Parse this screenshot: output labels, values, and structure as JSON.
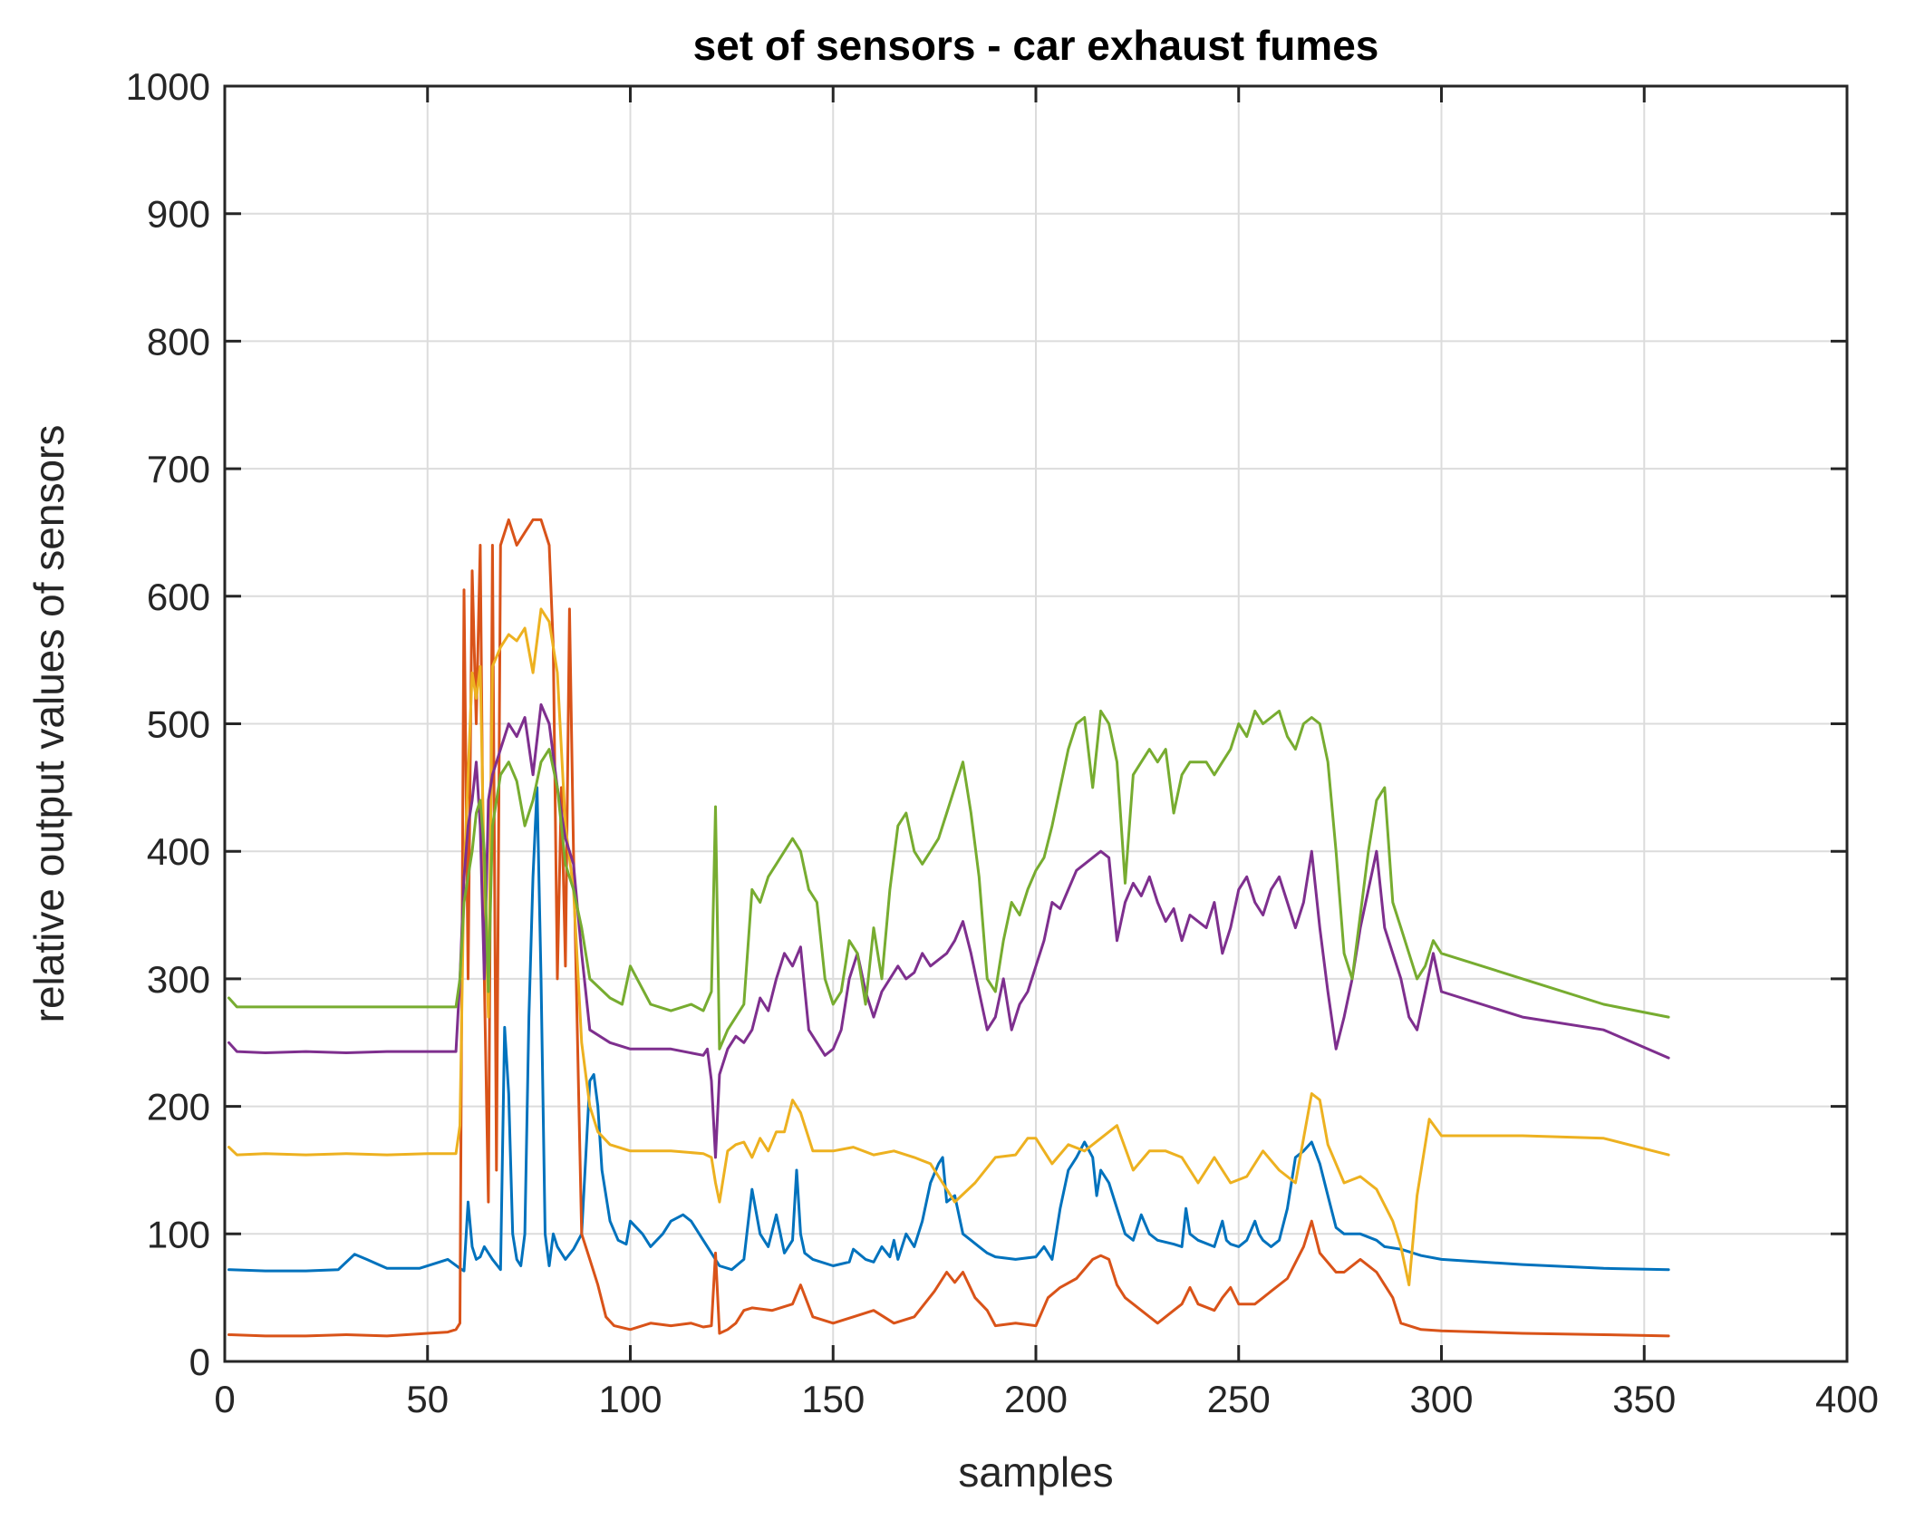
{
  "chart_data": {
    "type": "line",
    "title": "set of sensors - car exhaust fumes",
    "xlabel": "samples",
    "ylabel": "relative output values of sensors",
    "xlim": [
      0,
      400
    ],
    "ylim": [
      0,
      1000
    ],
    "xticks": [
      "0",
      "50",
      "100",
      "150",
      "200",
      "250",
      "300",
      "350",
      "400"
    ],
    "yticks": [
      "0",
      "100",
      "200",
      "300",
      "400",
      "500",
      "600",
      "700",
      "800",
      "900",
      "1000"
    ],
    "grid": true,
    "legend": "none",
    "series": [
      {
        "color": "#0072BD",
        "x": [
          1,
          10,
          20,
          28,
          32,
          35,
          40,
          48,
          52,
          55,
          58,
          59,
          60,
          61,
          62,
          63,
          64,
          66,
          68,
          69,
          70,
          71,
          72,
          73,
          74,
          75,
          76,
          77,
          78,
          79,
          80,
          81,
          82,
          84,
          86,
          88,
          90,
          91,
          92,
          93,
          95,
          97,
          99,
          100,
          103,
          105,
          108,
          110,
          113,
          115,
          118,
          120,
          122,
          125,
          128,
          130,
          132,
          134,
          136,
          137,
          138,
          140,
          141,
          142,
          143,
          145,
          150,
          154,
          155,
          158,
          160,
          162,
          164,
          165,
          166,
          168,
          170,
          172,
          174,
          176,
          177,
          178,
          180,
          182,
          184,
          186,
          188,
          190,
          195,
          200,
          202,
          204,
          206,
          208,
          210,
          212,
          214,
          215,
          216,
          218,
          220,
          222,
          224,
          226,
          228,
          230,
          234,
          236,
          237,
          238,
          240,
          244,
          246,
          247,
          248,
          250,
          252,
          254,
          255,
          256,
          258,
          260,
          262,
          264,
          266,
          268,
          270,
          272,
          274,
          276,
          280,
          284,
          286,
          290,
          295,
          300,
          320,
          340,
          356
        ],
        "y": [
          72,
          71,
          71,
          72,
          84,
          80,
          73,
          73,
          77,
          80,
          73,
          71,
          125,
          90,
          80,
          82,
          90,
          80,
          72,
          262,
          210,
          100,
          80,
          75,
          100,
          270,
          380,
          450,
          300,
          100,
          75,
          100,
          90,
          80,
          88,
          100,
          220,
          225,
          200,
          150,
          110,
          95,
          92,
          110,
          100,
          90,
          100,
          110,
          115,
          110,
          95,
          85,
          75,
          72,
          80,
          135,
          100,
          90,
          115,
          100,
          85,
          95,
          150,
          100,
          85,
          80,
          75,
          78,
          88,
          80,
          78,
          90,
          82,
          95,
          80,
          100,
          90,
          110,
          140,
          155,
          160,
          125,
          130,
          100,
          95,
          90,
          85,
          82,
          80,
          82,
          90,
          80,
          120,
          150,
          160,
          172,
          160,
          130,
          150,
          140,
          120,
          100,
          95,
          115,
          100,
          95,
          92,
          90,
          120,
          100,
          95,
          90,
          110,
          95,
          92,
          90,
          95,
          110,
          100,
          95,
          90,
          95,
          120,
          160,
          165,
          172,
          155,
          130,
          105,
          100,
          100,
          95,
          90,
          88,
          83,
          80,
          76,
          73,
          72
        ]
      },
      {
        "color": "#D95319",
        "x": [
          1,
          10,
          20,
          30,
          40,
          50,
          55,
          57,
          58,
          59,
          60,
          61,
          62,
          63,
          64,
          65,
          66,
          67,
          68,
          70,
          72,
          74,
          76,
          78,
          80,
          81,
          82,
          83,
          84,
          85,
          86,
          87,
          88,
          90,
          92,
          94,
          96,
          100,
          105,
          110,
          115,
          118,
          120,
          121,
          122,
          124,
          126,
          128,
          130,
          135,
          140,
          142,
          145,
          150,
          155,
          160,
          165,
          170,
          175,
          178,
          180,
          182,
          185,
          188,
          190,
          195,
          200,
          203,
          206,
          210,
          214,
          216,
          218,
          220,
          222,
          226,
          230,
          234,
          236,
          238,
          240,
          244,
          246,
          248,
          250,
          254,
          256,
          258,
          262,
          266,
          268,
          270,
          274,
          276,
          280,
          284,
          288,
          290,
          295,
          300,
          320,
          340,
          356
        ],
        "y": [
          21,
          20,
          20,
          21,
          20,
          22,
          23,
          25,
          30,
          605,
          300,
          620,
          500,
          640,
          300,
          125,
          640,
          150,
          640,
          660,
          640,
          650,
          660,
          660,
          640,
          560,
          300,
          450,
          310,
          590,
          400,
          250,
          100,
          80,
          60,
          35,
          28,
          25,
          30,
          28,
          30,
          27,
          28,
          85,
          22,
          25,
          30,
          40,
          42,
          40,
          45,
          60,
          35,
          30,
          35,
          40,
          30,
          35,
          55,
          70,
          62,
          70,
          50,
          40,
          28,
          30,
          28,
          50,
          58,
          65,
          80,
          83,
          80,
          60,
          50,
          40,
          30,
          40,
          45,
          58,
          45,
          40,
          50,
          58,
          45,
          45,
          50,
          55,
          65,
          90,
          110,
          85,
          70,
          70,
          80,
          70,
          50,
          30,
          25,
          24,
          22,
          21,
          20
        ]
      },
      {
        "color": "#EDB120",
        "x": [
          1,
          3,
          10,
          20,
          30,
          40,
          50,
          57,
          58,
          59,
          60,
          61,
          62,
          63,
          64,
          65,
          66,
          68,
          70,
          72,
          74,
          76,
          78,
          80,
          82,
          84,
          86,
          88,
          90,
          92,
          95,
          100,
          110,
          118,
          120,
          121,
          122,
          124,
          126,
          128,
          130,
          132,
          134,
          136,
          138,
          140,
          142,
          145,
          150,
          155,
          160,
          165,
          170,
          174,
          176,
          178,
          180,
          185,
          190,
          195,
          198,
          200,
          204,
          208,
          212,
          216,
          220,
          224,
          228,
          232,
          236,
          240,
          244,
          248,
          252,
          256,
          260,
          264,
          266,
          268,
          270,
          272,
          276,
          280,
          284,
          288,
          290,
          292,
          294,
          297,
          300,
          320,
          340,
          356
        ],
        "y": [
          168,
          162,
          163,
          162,
          163,
          162,
          163,
          163,
          185,
          380,
          460,
          540,
          520,
          545,
          380,
          270,
          545,
          560,
          570,
          565,
          575,
          540,
          590,
          580,
          540,
          420,
          370,
          250,
          200,
          180,
          170,
          165,
          165,
          163,
          160,
          140,
          125,
          165,
          170,
          172,
          160,
          175,
          165,
          180,
          180,
          205,
          195,
          165,
          165,
          168,
          162,
          165,
          160,
          155,
          145,
          135,
          125,
          140,
          160,
          162,
          175,
          175,
          155,
          170,
          165,
          175,
          185,
          150,
          165,
          165,
          160,
          140,
          160,
          140,
          145,
          165,
          150,
          140,
          175,
          210,
          205,
          170,
          140,
          145,
          135,
          110,
          90,
          60,
          130,
          190,
          177,
          177,
          175,
          162
        ]
      },
      {
        "color": "#7E2F8E",
        "x": [
          1,
          3,
          10,
          20,
          30,
          40,
          50,
          55,
          57,
          58,
          59,
          60,
          61,
          62,
          63,
          64,
          65,
          66,
          68,
          70,
          72,
          74,
          76,
          78,
          80,
          82,
          84,
          86,
          88,
          90,
          95,
          100,
          110,
          118,
          119,
          120,
          121,
          122,
          124,
          126,
          128,
          130,
          132,
          134,
          136,
          138,
          140,
          142,
          144,
          146,
          148,
          150,
          152,
          154,
          156,
          158,
          160,
          162,
          164,
          166,
          168,
          170,
          172,
          174,
          176,
          178,
          180,
          182,
          184,
          186,
          188,
          190,
          192,
          194,
          196,
          198,
          200,
          202,
          204,
          206,
          208,
          210,
          212,
          214,
          216,
          218,
          220,
          222,
          224,
          226,
          228,
          230,
          232,
          234,
          236,
          238,
          240,
          242,
          244,
          246,
          248,
          250,
          252,
          254,
          256,
          258,
          260,
          262,
          264,
          266,
          268,
          270,
          272,
          274,
          276,
          278,
          280,
          282,
          284,
          286,
          288,
          290,
          292,
          294,
          296,
          298,
          300,
          320,
          340,
          356
        ],
        "y": [
          250,
          243,
          242,
          243,
          242,
          243,
          243,
          243,
          243,
          300,
          380,
          420,
          440,
          470,
          420,
          300,
          440,
          460,
          480,
          500,
          490,
          505,
          460,
          515,
          500,
          450,
          410,
          390,
          320,
          260,
          250,
          245,
          245,
          240,
          245,
          220,
          160,
          225,
          245,
          255,
          250,
          260,
          285,
          275,
          300,
          320,
          310,
          325,
          260,
          250,
          240,
          245,
          260,
          300,
          320,
          290,
          270,
          290,
          300,
          310,
          300,
          305,
          320,
          310,
          315,
          320,
          330,
          345,
          320,
          290,
          260,
          270,
          300,
          260,
          280,
          290,
          310,
          330,
          360,
          355,
          370,
          385,
          390,
          395,
          400,
          395,
          330,
          360,
          375,
          365,
          380,
          360,
          345,
          355,
          330,
          350,
          345,
          340,
          360,
          320,
          340,
          370,
          380,
          360,
          350,
          370,
          380,
          360,
          340,
          360,
          400,
          340,
          290,
          245,
          270,
          300,
          340,
          370,
          400,
          340,
          320,
          300,
          270,
          260,
          290,
          320,
          290,
          270,
          260,
          238
        ]
      },
      {
        "color": "#77AC30",
        "x": [
          1,
          3,
          10,
          20,
          30,
          40,
          50,
          57,
          58,
          59,
          60,
          61,
          62,
          63,
          64,
          65,
          66,
          68,
          70,
          72,
          74,
          76,
          78,
          80,
          82,
          84,
          86,
          88,
          90,
          95,
          98,
          100,
          105,
          110,
          115,
          118,
          120,
          121,
          122,
          124,
          126,
          128,
          130,
          132,
          134,
          136,
          138,
          140,
          142,
          144,
          146,
          148,
          150,
          152,
          154,
          156,
          158,
          160,
          162,
          164,
          166,
          168,
          170,
          172,
          174,
          176,
          178,
          180,
          182,
          184,
          186,
          188,
          190,
          192,
          194,
          196,
          198,
          200,
          202,
          204,
          206,
          208,
          210,
          212,
          214,
          216,
          218,
          220,
          222,
          224,
          226,
          228,
          230,
          232,
          234,
          236,
          238,
          240,
          242,
          244,
          246,
          248,
          250,
          252,
          254,
          256,
          258,
          260,
          262,
          264,
          266,
          268,
          270,
          272,
          274,
          276,
          278,
          280,
          282,
          284,
          286,
          288,
          290,
          292,
          294,
          296,
          298,
          300,
          320,
          340,
          356
        ],
        "y": [
          285,
          278,
          278,
          278,
          278,
          278,
          278,
          278,
          300,
          360,
          380,
          400,
          430,
          440,
          400,
          290,
          420,
          460,
          470,
          455,
          420,
          440,
          470,
          480,
          450,
          390,
          370,
          340,
          300,
          285,
          280,
          310,
          280,
          275,
          280,
          275,
          290,
          435,
          245,
          260,
          270,
          280,
          370,
          360,
          380,
          390,
          400,
          410,
          400,
          370,
          360,
          300,
          280,
          290,
          330,
          320,
          280,
          340,
          300,
          370,
          420,
          430,
          400,
          390,
          400,
          410,
          430,
          450,
          470,
          430,
          380,
          300,
          290,
          330,
          360,
          350,
          370,
          385,
          395,
          420,
          450,
          480,
          500,
          505,
          450,
          510,
          500,
          470,
          375,
          460,
          470,
          480,
          470,
          480,
          430,
          460,
          470,
          470,
          470,
          460,
          470,
          480,
          500,
          490,
          510,
          500,
          505,
          510,
          490,
          480,
          500,
          505,
          500,
          470,
          400,
          320,
          300,
          350,
          400,
          440,
          450,
          360,
          340,
          320,
          300,
          310,
          330,
          320,
          300,
          280,
          270
        ]
      }
    ]
  }
}
